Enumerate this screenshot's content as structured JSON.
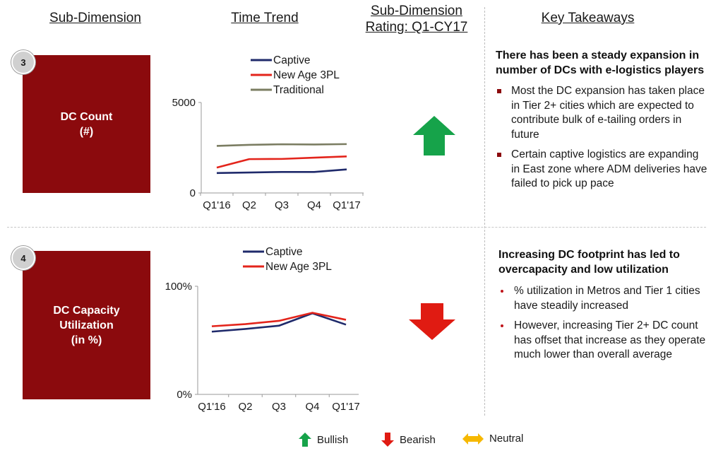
{
  "headers": {
    "sub_dimension": "Sub-Dimension",
    "time_trend": "Time Trend",
    "rating": "Sub-Dimension\nRating: Q1-CY17",
    "key_takeaways": "Key Takeaways"
  },
  "rows": [
    {
      "number": "3",
      "label": "DC Count\n(#)",
      "rating_direction": "up",
      "takeaway_title": "There has been a steady expansion in number of DCs with e-logistics players",
      "bullets": [
        "Most the DC expansion has taken place in Tier 2+ cities which are expected to contribute bulk of e-tailing orders in future",
        "Certain captive logistics are expanding in East zone where ADM deliveries have failed to pick up pace"
      ]
    },
    {
      "number": "4",
      "label": "DC Capacity\nUtilization\n(in %)",
      "rating_direction": "down",
      "takeaway_title": "Increasing DC footprint has led to overcapacity and low utilization",
      "bullets": [
        "% utilization in Metros and Tier 1 cities have steadily increased",
        "However, increasing Tier 2+ DC count has offset that increase as they operate much lower than overall average"
      ]
    }
  ],
  "legend": {
    "bullish": "Bullish",
    "bearish": "Bearish",
    "neutral": "Neutral"
  },
  "colors": {
    "box": "#8b0a0d",
    "captive": "#1f2a6b",
    "new_age_3pl": "#e3241b",
    "traditional": "#7b7d62",
    "bullish": "#16a34a",
    "bearish": "#e01b12",
    "neutral": "#f6b800"
  },
  "chart_data": [
    {
      "type": "line",
      "categories": [
        "Q1'16",
        "Q2",
        "Q3",
        "Q4",
        "Q1'17"
      ],
      "ylim": [
        0,
        5000
      ],
      "yticks": [
        "0",
        "5000"
      ],
      "series": [
        {
          "name": "Captive",
          "values": [
            1100,
            1130,
            1160,
            1160,
            1300
          ]
        },
        {
          "name": "New Age 3PL",
          "values": [
            1400,
            1870,
            1880,
            1950,
            2020
          ]
        },
        {
          "name": "Traditional",
          "values": [
            2600,
            2660,
            2690,
            2680,
            2700
          ]
        }
      ]
    },
    {
      "type": "line",
      "categories": [
        "Q1'16",
        "Q2",
        "Q3",
        "Q4",
        "Q1'17"
      ],
      "ylim": [
        0,
        100
      ],
      "yticks": [
        "0%",
        "100%"
      ],
      "series": [
        {
          "name": "Captive",
          "values": [
            58,
            60.5,
            63.5,
            75,
            64.5
          ]
        },
        {
          "name": "New Age 3PL",
          "values": [
            63,
            65,
            68,
            75.5,
            69
          ]
        }
      ]
    }
  ]
}
